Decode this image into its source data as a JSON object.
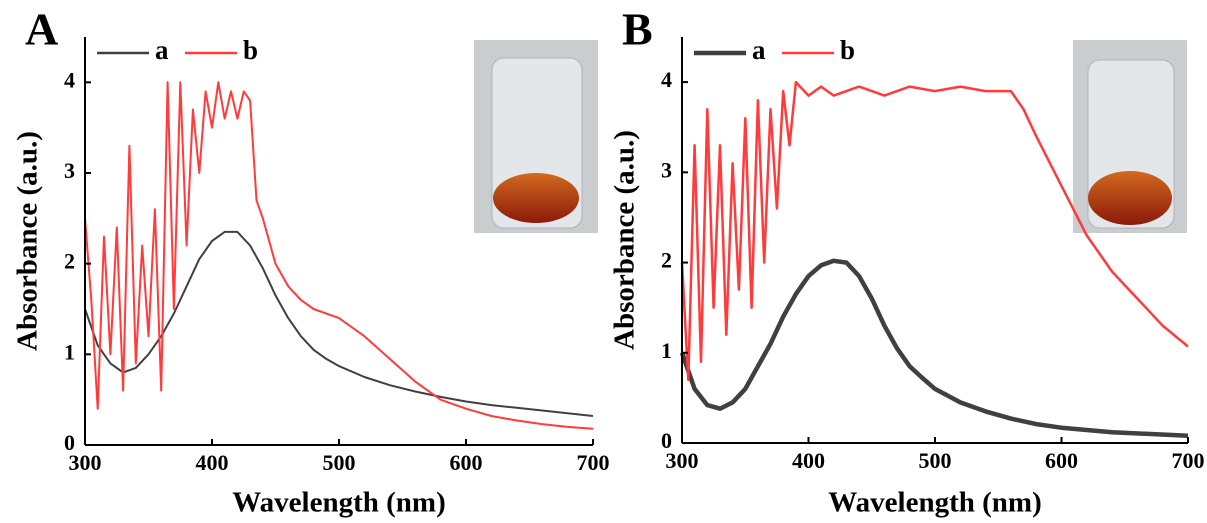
{
  "chart_data": [
    {
      "type": "line",
      "label": "A",
      "xlabel": "Wavelength (nm)",
      "ylabel": "Absorbance (a.u.)",
      "xlim": [
        300,
        700
      ],
      "ylim": [
        0,
        4.5
      ],
      "xticks": [
        300,
        400,
        500,
        600,
        700
      ],
      "yticks": [
        0,
        1,
        2,
        3,
        4
      ],
      "legend": "upper left",
      "series": [
        {
          "name": "a",
          "color": "#404040",
          "x": [
            300,
            310,
            320,
            330,
            340,
            350,
            360,
            370,
            380,
            390,
            400,
            410,
            420,
            430,
            440,
            450,
            460,
            470,
            480,
            490,
            500,
            520,
            540,
            560,
            580,
            600,
            620,
            640,
            660,
            680,
            700
          ],
          "values": [
            1.5,
            1.1,
            0.9,
            0.8,
            0.85,
            1.0,
            1.2,
            1.45,
            1.75,
            2.05,
            2.25,
            2.35,
            2.35,
            2.2,
            1.95,
            1.65,
            1.4,
            1.2,
            1.05,
            0.95,
            0.87,
            0.75,
            0.66,
            0.59,
            0.53,
            0.48,
            0.44,
            0.41,
            0.38,
            0.35,
            0.32
          ]
        },
        {
          "name": "b",
          "color": "#ff3b3b",
          "x": [
            300,
            305,
            310,
            315,
            320,
            325,
            330,
            335,
            340,
            345,
            350,
            355,
            360,
            365,
            370,
            375,
            380,
            385,
            390,
            395,
            400,
            405,
            410,
            415,
            420,
            425,
            430,
            435,
            440,
            450,
            460,
            470,
            480,
            500,
            520,
            540,
            560,
            580,
            600,
            620,
            640,
            660,
            680,
            700
          ],
          "values": [
            2.5,
            1.6,
            0.4,
            2.3,
            1.0,
            2.4,
            0.6,
            3.3,
            0.9,
            2.2,
            1.2,
            2.6,
            0.6,
            4.0,
            1.5,
            4.0,
            2.2,
            3.7,
            3.0,
            3.9,
            3.5,
            4.0,
            3.6,
            3.9,
            3.6,
            3.9,
            3.8,
            2.7,
            2.5,
            2.0,
            1.75,
            1.6,
            1.5,
            1.4,
            1.2,
            0.95,
            0.7,
            0.5,
            0.4,
            0.32,
            0.27,
            0.23,
            0.2,
            0.18
          ]
        }
      ]
    },
    {
      "type": "line",
      "label": "B",
      "xlabel": "Wavelength (nm)",
      "ylabel": "Absorbance (a.u.)",
      "xlim": [
        300,
        700
      ],
      "ylim": [
        0,
        4.5
      ],
      "xticks": [
        300,
        400,
        500,
        600,
        700
      ],
      "yticks": [
        0,
        1,
        2,
        3,
        4
      ],
      "legend": "upper left",
      "series": [
        {
          "name": "a",
          "color": "#404040",
          "x": [
            300,
            310,
            320,
            330,
            340,
            350,
            360,
            370,
            380,
            390,
            400,
            410,
            420,
            430,
            440,
            450,
            460,
            470,
            480,
            490,
            500,
            520,
            540,
            560,
            580,
            600,
            640,
            700
          ],
          "values": [
            1.0,
            0.6,
            0.42,
            0.38,
            0.45,
            0.6,
            0.85,
            1.1,
            1.4,
            1.65,
            1.85,
            1.97,
            2.02,
            2.0,
            1.85,
            1.6,
            1.3,
            1.05,
            0.85,
            0.72,
            0.6,
            0.45,
            0.35,
            0.27,
            0.21,
            0.17,
            0.12,
            0.08
          ]
        },
        {
          "name": "b",
          "color": "#ff3b3b",
          "x": [
            300,
            305,
            310,
            315,
            320,
            325,
            330,
            335,
            340,
            345,
            350,
            355,
            360,
            365,
            370,
            375,
            380,
            385,
            390,
            400,
            410,
            420,
            440,
            460,
            480,
            500,
            520,
            540,
            560,
            570,
            580,
            600,
            620,
            640,
            660,
            680,
            700
          ],
          "values": [
            2.0,
            0.7,
            3.3,
            0.9,
            3.7,
            1.5,
            3.3,
            1.2,
            3.1,
            1.7,
            3.6,
            1.5,
            3.8,
            2.0,
            3.7,
            2.6,
            3.9,
            3.3,
            4.0,
            3.85,
            3.95,
            3.85,
            3.95,
            3.85,
            3.95,
            3.9,
            3.95,
            3.9,
            3.9,
            3.7,
            3.4,
            2.85,
            2.3,
            1.9,
            1.6,
            1.3,
            1.07
          ]
        }
      ]
    }
  ]
}
